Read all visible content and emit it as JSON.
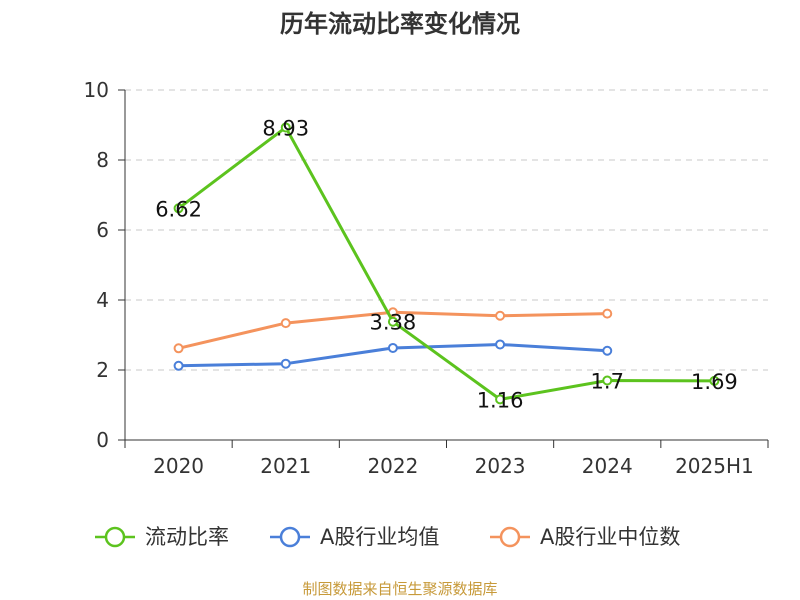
{
  "chart_data": {
    "type": "line",
    "title": "历年流动比率变化情况",
    "categories": [
      "2020",
      "2021",
      "2022",
      "2023",
      "2024",
      "2025H1"
    ],
    "ylim": [
      0,
      10
    ],
    "yticks": [
      "0",
      "2",
      "4",
      "6",
      "8",
      "10"
    ],
    "grid": true,
    "legend_position": "bottom",
    "series": [
      {
        "name": "流动比率",
        "color": "#5cc31e",
        "values": [
          6.62,
          8.93,
          3.38,
          1.16,
          1.7,
          1.69
        ],
        "labels": [
          "6.62",
          "8.93",
          "3.38",
          "1.16",
          "1.7",
          "1.69"
        ]
      },
      {
        "name": "A股行业均值",
        "color": "#4a7fd9",
        "values": [
          2.12,
          2.18,
          2.63,
          2.73,
          2.55,
          null
        ]
      },
      {
        "name": "A股行业中位数",
        "color": "#f4935d",
        "values": [
          2.62,
          3.34,
          3.65,
          3.55,
          3.61,
          null
        ]
      }
    ]
  },
  "footer": {
    "source": "制图数据来自恒生聚源数据库",
    "source_color": "#c79a3a"
  }
}
